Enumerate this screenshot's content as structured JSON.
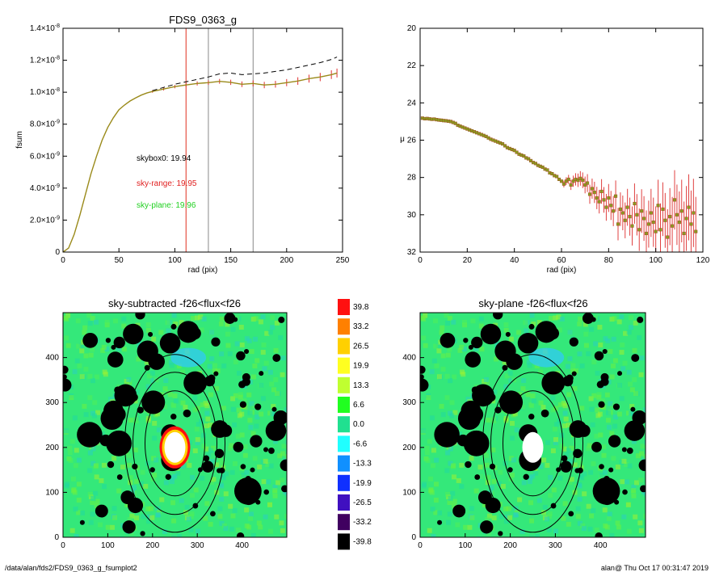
{
  "chart_data": [
    {
      "type": "line",
      "title": "FDS9_0363_g",
      "xlabel": "rad (pix)",
      "ylabel": "fsum",
      "xlim": [
        0,
        250
      ],
      "ylim": [
        0,
        1.4e-08
      ],
      "x_ticks": [
        "0",
        "50",
        "100",
        "150",
        "200",
        "250"
      ],
      "y_ticks": [
        {
          "m": "0",
          "e": ""
        },
        {
          "m": "2.0×10",
          "e": "-9"
        },
        {
          "m": "4.0×10",
          "e": "-9"
        },
        {
          "m": "6.0×10",
          "e": "-9"
        },
        {
          "m": "8.0×10",
          "e": "-9"
        },
        {
          "m": "1.0×10",
          "e": "-8"
        },
        {
          "m": "1.2×10",
          "e": "-8"
        },
        {
          "m": "1.4×10",
          "e": "-8"
        }
      ],
      "vlines": [
        {
          "x": 110,
          "color": "#e03020"
        },
        {
          "x": 130,
          "color": "#888888"
        },
        {
          "x": 170,
          "color": "#888888"
        }
      ],
      "annotations": [
        {
          "text": "skybox0: 19.94",
          "color": "#000000"
        },
        {
          "text": "sky-range: 19.95",
          "color": "#e02020"
        },
        {
          "text": "sky-plane: 19.96",
          "color": "#20d020"
        }
      ],
      "series": [
        {
          "style": "solid",
          "color": "#9a8a1a",
          "x": [
            0,
            5,
            10,
            15,
            20,
            25,
            30,
            35,
            40,
            45,
            50,
            55,
            60,
            65,
            70,
            75,
            80,
            90,
            100,
            110,
            120,
            130,
            140,
            150,
            160,
            170,
            180,
            190,
            200,
            210,
            220,
            230,
            240,
            245
          ],
          "y": [
            0,
            2.5e-10,
            1.1e-09,
            2.3e-09,
            3.6e-09,
            4.9e-09,
            6e-09,
            7e-09,
            7.8e-09,
            8.4e-09,
            8.9e-09,
            9.2e-09,
            9.45e-09,
            9.65e-09,
            9.82e-09,
            9.95e-09,
            1.005e-08,
            1.02e-08,
            1.035e-08,
            1.045e-08,
            1.055e-08,
            1.06e-08,
            1.068e-08,
            1.062e-08,
            1.05e-08,
            1.055e-08,
            1.045e-08,
            1.05e-08,
            1.06e-08,
            1.07e-08,
            1.085e-08,
            1.095e-08,
            1.11e-08,
            1.12e-08
          ]
        },
        {
          "style": "dashed",
          "color": "#000000",
          "x": [
            80,
            90,
            100,
            110,
            120,
            130,
            140,
            150,
            160,
            170,
            180,
            190,
            200,
            210,
            220,
            230,
            240,
            245
          ],
          "y": [
            1.01e-08,
            1.03e-08,
            1.05e-08,
            1.065e-08,
            1.08e-08,
            1.095e-08,
            1.115e-08,
            1.12e-08,
            1.11e-08,
            1.115e-08,
            1.12e-08,
            1.13e-08,
            1.14e-08,
            1.155e-08,
            1.17e-08,
            1.185e-08,
            1.205e-08,
            1.22e-08
          ]
        }
      ]
    },
    {
      "type": "scatter",
      "title": "",
      "xlabel": "rad (pix)",
      "ylabel": "μ",
      "xlim": [
        0,
        120
      ],
      "ylim": [
        32,
        20
      ],
      "x_ticks": [
        "0",
        "20",
        "40",
        "60",
        "80",
        "100",
        "120"
      ],
      "y_ticks": [
        "20",
        "22",
        "24",
        "26",
        "28",
        "30",
        "32"
      ],
      "points": [
        [
          1,
          24.82
        ],
        [
          2,
          24.85
        ],
        [
          3,
          24.84
        ],
        [
          4,
          24.86
        ],
        [
          5,
          24.88
        ],
        [
          6,
          24.87
        ],
        [
          7,
          24.9
        ],
        [
          8,
          24.92
        ],
        [
          9,
          24.93
        ],
        [
          10,
          24.95
        ],
        [
          11,
          24.96
        ],
        [
          12,
          24.98
        ],
        [
          13,
          25.0
        ],
        [
          14,
          25.05
        ],
        [
          15,
          25.1
        ],
        [
          16,
          25.2
        ],
        [
          17,
          25.25
        ],
        [
          18,
          25.3
        ],
        [
          19,
          25.35
        ],
        [
          20,
          25.4
        ],
        [
          21,
          25.45
        ],
        [
          22,
          25.5
        ],
        [
          23,
          25.55
        ],
        [
          24,
          25.6
        ],
        [
          25,
          25.65
        ],
        [
          26,
          25.7
        ],
        [
          27,
          25.75
        ],
        [
          28,
          25.8
        ],
        [
          29,
          25.88
        ],
        [
          30,
          25.95
        ],
        [
          31,
          26.0
        ],
        [
          32,
          26.05
        ],
        [
          33,
          26.1
        ],
        [
          34,
          26.15
        ],
        [
          35,
          26.2
        ],
        [
          36,
          26.3
        ],
        [
          37,
          26.4
        ],
        [
          38,
          26.45
        ],
        [
          39,
          26.5
        ],
        [
          40,
          26.55
        ],
        [
          41,
          26.65
        ],
        [
          42,
          26.75
        ],
        [
          43,
          26.8
        ],
        [
          44,
          26.85
        ],
        [
          45,
          26.95
        ],
        [
          46,
          27.0
        ],
        [
          47,
          27.1
        ],
        [
          48,
          27.2
        ],
        [
          49,
          27.25
        ],
        [
          50,
          27.35
        ],
        [
          51,
          27.4
        ],
        [
          52,
          27.45
        ],
        [
          53,
          27.55
        ],
        [
          54,
          27.6
        ],
        [
          55,
          27.75
        ],
        [
          56,
          27.8
        ],
        [
          57,
          27.9
        ],
        [
          58,
          27.95
        ],
        [
          59,
          28.1
        ],
        [
          60,
          28.2
        ],
        [
          61,
          28.35
        ],
        [
          62,
          28.2
        ],
        [
          63,
          28.1
        ],
        [
          64,
          28.4
        ],
        [
          65,
          28.2
        ],
        [
          66,
          28.1
        ],
        [
          67,
          28.15
        ],
        [
          68,
          28.05
        ],
        [
          69,
          28.15
        ],
        [
          70,
          28.4
        ],
        [
          71,
          28.3
        ],
        [
          72,
          28.9
        ],
        [
          73,
          28.6
        ],
        [
          74,
          28.8
        ],
        [
          75,
          29.1
        ],
        [
          76,
          29.3
        ],
        [
          77,
          28.75
        ],
        [
          78,
          29.2
        ],
        [
          79,
          29.6
        ],
        [
          80,
          29.1
        ],
        [
          81,
          29.5
        ],
        [
          82,
          29.8
        ],
        [
          83,
          29.0
        ],
        [
          84,
          30.5
        ],
        [
          85,
          29.7
        ],
        [
          86,
          29.9
        ],
        [
          87,
          30.3
        ],
        [
          88,
          29.6
        ],
        [
          89,
          30.1
        ],
        [
          90,
          30.6
        ],
        [
          91,
          29.4
        ],
        [
          92,
          30.0
        ],
        [
          93,
          30.8
        ],
        [
          94,
          29.8
        ],
        [
          95,
          30.2
        ],
        [
          96,
          31.0
        ],
        [
          97,
          30.5
        ],
        [
          98,
          29.9
        ],
        [
          99,
          30.4
        ],
        [
          100,
          30.9
        ],
        [
          101,
          29.5
        ],
        [
          102,
          30.8
        ],
        [
          103,
          29.7
        ],
        [
          104,
          30.3
        ],
        [
          105,
          31.2
        ],
        [
          106,
          30.1
        ],
        [
          107,
          30.6
        ],
        [
          108,
          29.2
        ],
        [
          109,
          30.0
        ],
        [
          110,
          30.4
        ],
        [
          111,
          29.8
        ],
        [
          112,
          31.0
        ],
        [
          113,
          30.2
        ],
        [
          114,
          29.6
        ],
        [
          115,
          30.5
        ],
        [
          116,
          29.9
        ],
        [
          117,
          30.9
        ]
      ]
    },
    {
      "type": "heatmap",
      "title": "sky-subtracted -f26<flux<f26",
      "xlim": [
        0,
        500
      ],
      "ylim": [
        0,
        500
      ],
      "x_ticks": [
        "0",
        "100",
        "200",
        "300",
        "400"
      ],
      "y_ticks": [
        "0",
        "100",
        "200",
        "300",
        "400"
      ]
    },
    {
      "type": "heatmap",
      "title": "sky-plane -f26<flux<f26",
      "xlim": [
        0,
        500
      ],
      "ylim": [
        0,
        500
      ],
      "x_ticks": [
        "0",
        "100",
        "200",
        "300",
        "400"
      ],
      "y_ticks": [
        "0",
        "100",
        "200",
        "300",
        "400"
      ]
    }
  ],
  "colorbar": {
    "labels": [
      "39.8",
      "33.2",
      "26.5",
      "19.9",
      "13.3",
      "6.6",
      "0.0",
      "-6.6",
      "-13.3",
      "-19.9",
      "-26.5",
      "-33.2",
      "-39.8"
    ],
    "colors": [
      "#ff1010",
      "#ff8000",
      "#ffd000",
      "#ffff20",
      "#c0ff30",
      "#20ff20",
      "#20e090",
      "#20ffff",
      "#1090ff",
      "#1030ff",
      "#4010c0",
      "#400060",
      "#000000"
    ]
  },
  "footer": {
    "left": "/data/alan/fds2/FDS9_0363_g_fsumplot2",
    "right": "alan@  Thu Oct 17 00:31:47 2019"
  }
}
